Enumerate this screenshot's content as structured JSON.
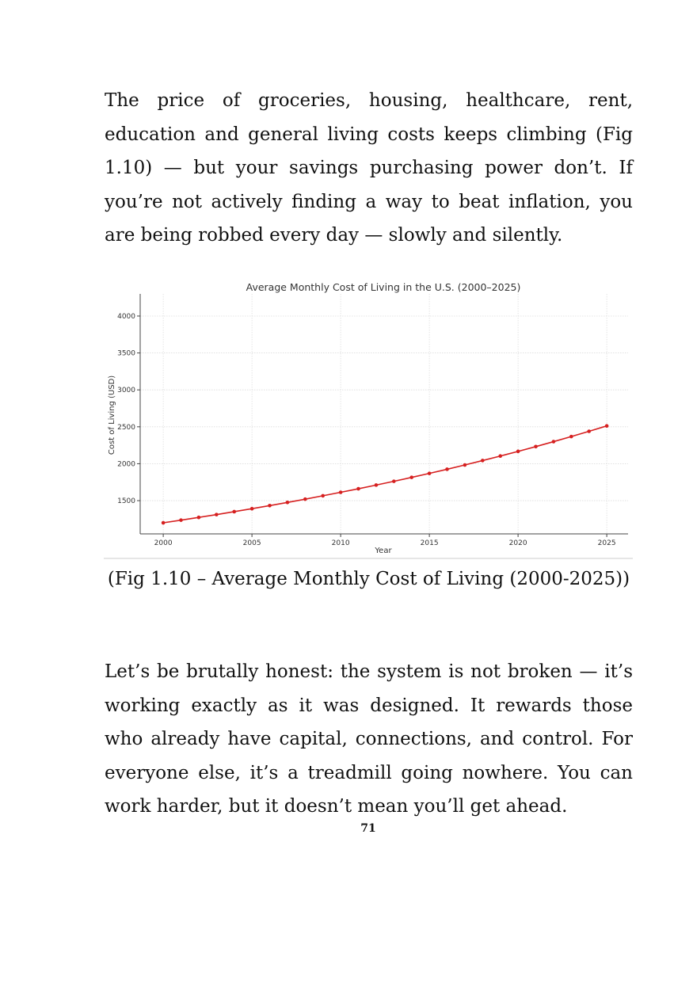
{
  "paragraphs": {
    "intro": "The price of groceries, housing, healthcare, rent, education and general living costs keeps climbing (Fig 1.10) — but your savings purchasing power don’t. If you’re not actively finding a way to beat inflation, you are being robbed every day — slowly and silently.",
    "honest": "Let’s be brutally honest: the system is not broken — it’s working exactly as it was designed. It rewards those who already have capital, connections, and control. For everyone else, it’s a treadmill going nowhere. You can work harder, but it doesn’t mean you’ll get ahead."
  },
  "figure": {
    "caption": "(Fig 1.10 – Average Monthly Cost of Living (2000-2025))"
  },
  "page_number": "71",
  "chart_data": {
    "type": "line",
    "title": "Average Monthly Cost of Living in the U.S. (2000–2025)",
    "xlabel": "Year",
    "ylabel": "Cost of Living (USD)",
    "xlim": [
      1998.7,
      2026.2
    ],
    "ylim": [
      1050,
      4300
    ],
    "x_ticks": [
      2000,
      2005,
      2010,
      2015,
      2020,
      2025
    ],
    "y_ticks": [
      1500,
      2000,
      2500,
      3000,
      3500,
      4000
    ],
    "grid": true,
    "legend": "none",
    "line_color": "#d62020",
    "x": [
      2000,
      2001,
      2002,
      2003,
      2004,
      2005,
      2006,
      2007,
      2008,
      2009,
      2010,
      2011,
      2012,
      2013,
      2014,
      2015,
      2016,
      2017,
      2018,
      2019,
      2020,
      2021,
      2022,
      2023,
      2024,
      2025
    ],
    "values": [
      1200,
      1236,
      1273,
      1311,
      1351,
      1391,
      1433,
      1476,
      1520,
      1566,
      1613,
      1661,
      1711,
      1762,
      1815,
      1869,
      1925,
      1983,
      2043,
      2104,
      2167,
      2232,
      2299,
      2368,
      2439,
      2512
    ]
  }
}
